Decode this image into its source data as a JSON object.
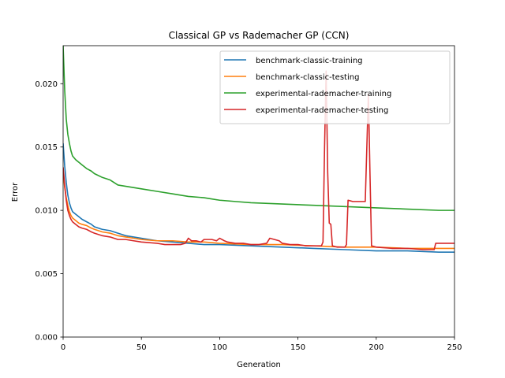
{
  "chart_data": {
    "type": "line",
    "title": "Classical GP vs Rademacher GP (CCN)",
    "xlabel": "Generation",
    "ylabel": "Error",
    "xlim": [
      0,
      250
    ],
    "ylim": [
      0,
      0.023
    ],
    "xticks": [
      0,
      50,
      100,
      150,
      200,
      250
    ],
    "yticks": [
      0.0,
      0.005,
      0.01,
      0.015,
      0.02
    ],
    "ytick_labels": [
      "0.000",
      "0.005",
      "0.010",
      "0.015",
      "0.020"
    ],
    "grid": false,
    "legend_position": "top-right",
    "series": [
      {
        "name": "benchmark-classic-training",
        "color": "#1f77b4",
        "points": [
          [
            0,
            0.0153
          ],
          [
            1,
            0.0135
          ],
          [
            2,
            0.0122
          ],
          [
            3,
            0.0112
          ],
          [
            4,
            0.0106
          ],
          [
            5,
            0.0102
          ],
          [
            6,
            0.0099
          ],
          [
            8,
            0.0097
          ],
          [
            10,
            0.0095
          ],
          [
            12,
            0.0093
          ],
          [
            15,
            0.0091
          ],
          [
            18,
            0.0089
          ],
          [
            20,
            0.0087
          ],
          [
            25,
            0.0085
          ],
          [
            30,
            0.0084
          ],
          [
            35,
            0.0082
          ],
          [
            40,
            0.008
          ],
          [
            45,
            0.0079
          ],
          [
            50,
            0.0078
          ],
          [
            60,
            0.0076
          ],
          [
            70,
            0.0075
          ],
          [
            80,
            0.0074
          ],
          [
            90,
            0.0073
          ],
          [
            100,
            0.0073
          ],
          [
            120,
            0.0072
          ],
          [
            140,
            0.0071
          ],
          [
            160,
            0.007
          ],
          [
            180,
            0.0069
          ],
          [
            200,
            0.0068
          ],
          [
            220,
            0.0068
          ],
          [
            240,
            0.0067
          ],
          [
            250,
            0.0067
          ]
        ]
      },
      {
        "name": "benchmark-classic-testing",
        "color": "#ff7f0e",
        "points": [
          [
            0,
            0.013
          ],
          [
            1,
            0.0118
          ],
          [
            2,
            0.011
          ],
          [
            3,
            0.0104
          ],
          [
            4,
            0.0099
          ],
          [
            5,
            0.0096
          ],
          [
            6,
            0.0094
          ],
          [
            8,
            0.0092
          ],
          [
            10,
            0.009
          ],
          [
            12,
            0.0089
          ],
          [
            15,
            0.0088
          ],
          [
            18,
            0.0086
          ],
          [
            20,
            0.0085
          ],
          [
            25,
            0.0083
          ],
          [
            30,
            0.0082
          ],
          [
            35,
            0.008
          ],
          [
            40,
            0.0079
          ],
          [
            45,
            0.0078
          ],
          [
            50,
            0.0077
          ],
          [
            60,
            0.0076
          ],
          [
            70,
            0.0076
          ],
          [
            80,
            0.0075
          ],
          [
            90,
            0.0075
          ],
          [
            100,
            0.0074
          ],
          [
            120,
            0.0073
          ],
          [
            140,
            0.0073
          ],
          [
            160,
            0.0072
          ],
          [
            180,
            0.0071
          ],
          [
            200,
            0.0071
          ],
          [
            220,
            0.007
          ],
          [
            240,
            0.007
          ],
          [
            250,
            0.007
          ]
        ]
      },
      {
        "name": "experimental-rademacher-training",
        "color": "#2ca02c",
        "points": [
          [
            0,
            0.023
          ],
          [
            1,
            0.0195
          ],
          [
            2,
            0.0172
          ],
          [
            3,
            0.016
          ],
          [
            4,
            0.0153
          ],
          [
            5,
            0.0147
          ],
          [
            6,
            0.0143
          ],
          [
            8,
            0.014
          ],
          [
            10,
            0.0138
          ],
          [
            12,
            0.0136
          ],
          [
            15,
            0.0133
          ],
          [
            18,
            0.0131
          ],
          [
            20,
            0.0129
          ],
          [
            25,
            0.0126
          ],
          [
            30,
            0.0124
          ],
          [
            35,
            0.012
          ],
          [
            40,
            0.0119
          ],
          [
            45,
            0.0118
          ],
          [
            50,
            0.0117
          ],
          [
            60,
            0.0115
          ],
          [
            70,
            0.0113
          ],
          [
            80,
            0.0111
          ],
          [
            90,
            0.011
          ],
          [
            100,
            0.0108
          ],
          [
            110,
            0.0107
          ],
          [
            120,
            0.0106
          ],
          [
            140,
            0.0105
          ],
          [
            160,
            0.0104
          ],
          [
            180,
            0.0103
          ],
          [
            200,
            0.0102
          ],
          [
            220,
            0.0101
          ],
          [
            240,
            0.01
          ],
          [
            250,
            0.01
          ]
        ]
      },
      {
        "name": "experimental-rademacher-testing",
        "color": "#d62728",
        "points": [
          [
            0,
            0.0134
          ],
          [
            1,
            0.012
          ],
          [
            2,
            0.0108
          ],
          [
            3,
            0.01
          ],
          [
            4,
            0.0096
          ],
          [
            5,
            0.0093
          ],
          [
            6,
            0.0091
          ],
          [
            8,
            0.0089
          ],
          [
            10,
            0.0087
          ],
          [
            12,
            0.0086
          ],
          [
            15,
            0.0085
          ],
          [
            18,
            0.0083
          ],
          [
            20,
            0.0082
          ],
          [
            25,
            0.008
          ],
          [
            30,
            0.0079
          ],
          [
            35,
            0.0077
          ],
          [
            40,
            0.0077
          ],
          [
            45,
            0.0076
          ],
          [
            50,
            0.0075
          ],
          [
            60,
            0.0074
          ],
          [
            65,
            0.0073
          ],
          [
            70,
            0.0073
          ],
          [
            75,
            0.0073
          ],
          [
            78,
            0.0074
          ],
          [
            80,
            0.0078
          ],
          [
            82,
            0.0076
          ],
          [
            85,
            0.0076
          ],
          [
            88,
            0.0075
          ],
          [
            90,
            0.0077
          ],
          [
            95,
            0.0077
          ],
          [
            98,
            0.0076
          ],
          [
            100,
            0.0078
          ],
          [
            103,
            0.0076
          ],
          [
            105,
            0.0075
          ],
          [
            110,
            0.0074
          ],
          [
            115,
            0.0074
          ],
          [
            120,
            0.0073
          ],
          [
            125,
            0.0073
          ],
          [
            130,
            0.0074
          ],
          [
            132,
            0.0078
          ],
          [
            135,
            0.0077
          ],
          [
            138,
            0.0076
          ],
          [
            140,
            0.0074
          ],
          [
            145,
            0.0073
          ],
          [
            150,
            0.0073
          ],
          [
            155,
            0.0072
          ],
          [
            160,
            0.0072
          ],
          [
            163,
            0.0072
          ],
          [
            165,
            0.0072
          ],
          [
            166,
            0.0075
          ],
          [
            167,
            0.015
          ],
          [
            168,
            0.021
          ],
          [
            169,
            0.013
          ],
          [
            170,
            0.009
          ],
          [
            171,
            0.0089
          ],
          [
            172,
            0.0072
          ],
          [
            175,
            0.0071
          ],
          [
            180,
            0.0071
          ],
          [
            181,
            0.0073
          ],
          [
            182,
            0.0108
          ],
          [
            185,
            0.0107
          ],
          [
            190,
            0.0107
          ],
          [
            193,
            0.0107
          ],
          [
            194,
            0.015
          ],
          [
            195,
            0.0192
          ],
          [
            196,
            0.013
          ],
          [
            197,
            0.0072
          ],
          [
            200,
            0.0071
          ],
          [
            210,
            0.007
          ],
          [
            220,
            0.007
          ],
          [
            230,
            0.0069
          ],
          [
            237,
            0.0069
          ],
          [
            238,
            0.0074
          ],
          [
            245,
            0.0074
          ],
          [
            250,
            0.0074
          ]
        ]
      }
    ]
  }
}
